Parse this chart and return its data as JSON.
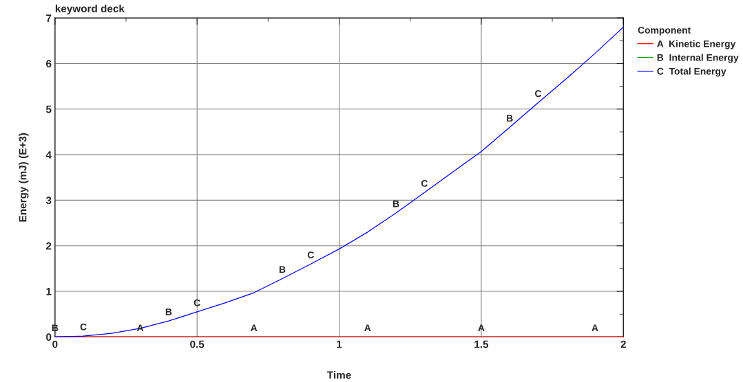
{
  "chart_data": {
    "type": "line",
    "title": "keyword deck",
    "xlabel": "Time",
    "ylabel": "Energy (mJ) (E+3)",
    "legend_title": "Component",
    "x": [
      0,
      0.1,
      0.2,
      0.3,
      0.4,
      0.5,
      0.6,
      0.7,
      0.8,
      0.9,
      1.0,
      1.1,
      1.2,
      1.3,
      1.4,
      1.5,
      1.6,
      1.7,
      1.8,
      1.9,
      2.0
    ],
    "series": [
      {
        "name": "A  Kinetic Energy",
        "color": "#ff0000",
        "values": [
          0,
          0,
          0,
          0,
          0,
          0,
          0,
          0,
          0,
          0,
          0,
          0,
          0,
          0,
          0,
          0,
          0,
          0,
          0,
          0,
          0
        ]
      },
      {
        "name": "B  Internal Energy",
        "color": "#00a000",
        "values": [
          null,
          null,
          null,
          null,
          null,
          null,
          null,
          null,
          null,
          null,
          null,
          null,
          null,
          null,
          null,
          null,
          null,
          null,
          null,
          null,
          null
        ]
      },
      {
        "name": "C  Total Energy",
        "color": "#0000ff",
        "values": [
          0,
          0.02,
          0.08,
          0.19,
          0.35,
          0.55,
          0.75,
          0.97,
          1.28,
          1.6,
          1.93,
          2.3,
          2.72,
          3.17,
          3.62,
          4.07,
          4.6,
          5.14,
          5.67,
          6.22,
          6.8
        ]
      }
    ],
    "annotations": [
      {
        "text": "B",
        "x": 0,
        "y": 0
      },
      {
        "text": "C",
        "x": 0.1,
        "y": 0.02
      },
      {
        "text": "A",
        "x": 0.3,
        "y": 0
      },
      {
        "text": "B",
        "x": 0.4,
        "y": 0.35
      },
      {
        "text": "C",
        "x": 0.5,
        "y": 0.55
      },
      {
        "text": "A",
        "x": 0.7,
        "y": 0
      },
      {
        "text": "B",
        "x": 0.8,
        "y": 1.28
      },
      {
        "text": "C",
        "x": 0.9,
        "y": 1.6
      },
      {
        "text": "A",
        "x": 1.1,
        "y": 0
      },
      {
        "text": "B",
        "x": 1.2,
        "y": 2.72
      },
      {
        "text": "C",
        "x": 1.3,
        "y": 3.17
      },
      {
        "text": "A",
        "x": 1.5,
        "y": 0
      },
      {
        "text": "B",
        "x": 1.6,
        "y": 4.6
      },
      {
        "text": "C",
        "x": 1.7,
        "y": 5.14
      },
      {
        "text": "A",
        "x": 1.9,
        "y": 0
      }
    ],
    "xlim": [
      0,
      2
    ],
    "ylim": [
      0,
      7
    ],
    "xticks": [
      0,
      {
        "value": 0.25,
        "label": null
      },
      0.5,
      {
        "value": 0.75,
        "label": null
      },
      1,
      {
        "value": 1.25,
        "label": null
      },
      1.5,
      {
        "value": 1.75,
        "label": null
      },
      2
    ],
    "yticks": [
      0,
      {
        "value": 0.5,
        "label": null
      },
      1,
      {
        "value": 1.5,
        "label": null
      },
      2,
      {
        "value": 2.5,
        "label": null
      },
      3,
      {
        "value": 3.5,
        "label": null
      },
      4,
      {
        "value": 4.5,
        "label": null
      },
      5,
      {
        "value": 5.5,
        "label": null
      },
      6,
      {
        "value": 6.5,
        "label": null
      },
      7
    ],
    "grid": true,
    "legend": "top right",
    "line_style": "solid"
  }
}
